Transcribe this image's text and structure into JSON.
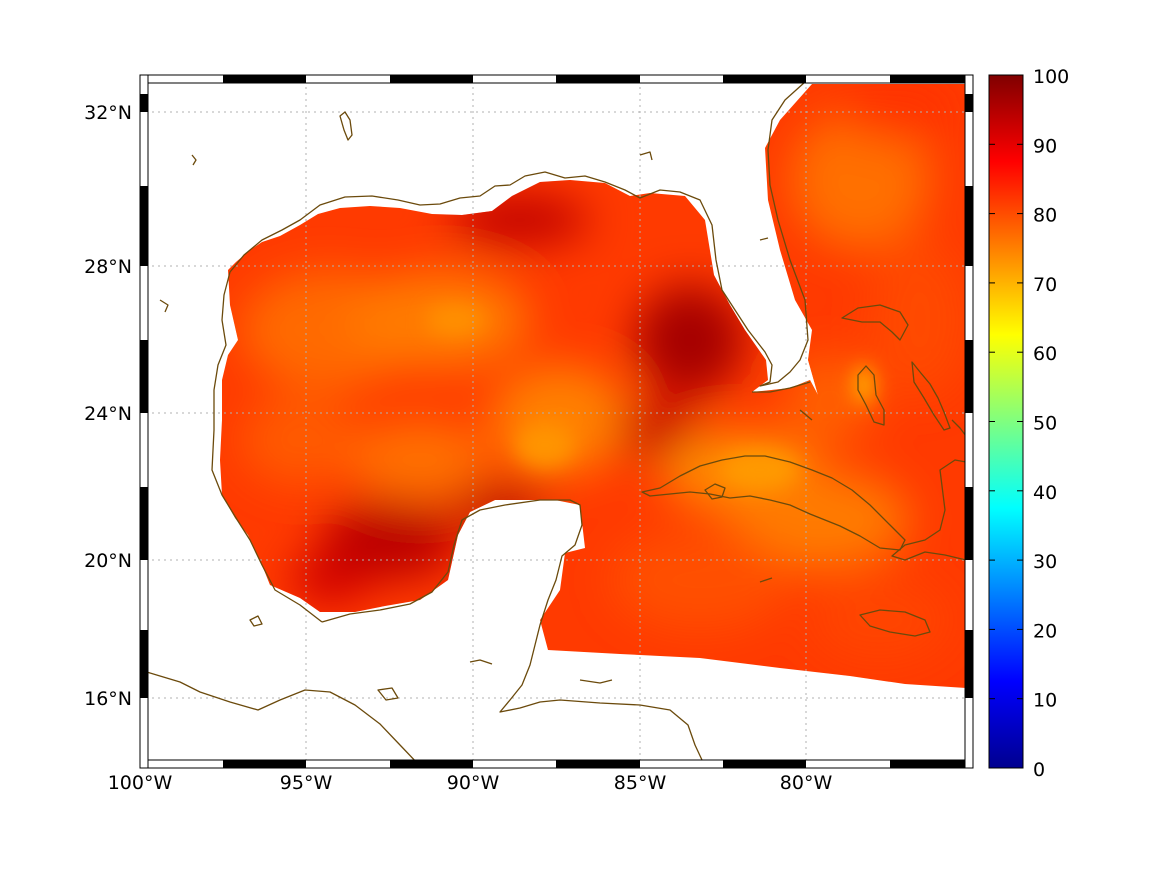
{
  "chart_data": {
    "type": "heatmap",
    "map_extent": {
      "lon": [
        -100,
        -75
      ],
      "lat": [
        14.2,
        33
      ]
    },
    "x_ticks": [
      {
        "value": -100,
        "label": "100°W"
      },
      {
        "value": -95,
        "label": "95°W"
      },
      {
        "value": -90,
        "label": "90°W"
      },
      {
        "value": -85,
        "label": "85°W"
      },
      {
        "value": -80,
        "label": "80°W"
      }
    ],
    "y_ticks": [
      {
        "value": 16,
        "label": "16°N"
      },
      {
        "value": 20,
        "label": "20°N"
      },
      {
        "value": 24,
        "label": "24°N"
      },
      {
        "value": 28,
        "label": "28°N"
      },
      {
        "value": 32,
        "label": "32°N"
      }
    ],
    "colorbar": {
      "colormap": "jet",
      "range": [
        0,
        100
      ],
      "ticks": [
        "0",
        "10",
        "20",
        "30",
        "40",
        "50",
        "60",
        "70",
        "80",
        "90",
        "100"
      ]
    },
    "field_range_observed": [
      65,
      100
    ],
    "colors": {
      "coastline": "#6b4a0c",
      "grid": "#b0b0b0"
    },
    "grid": true
  }
}
